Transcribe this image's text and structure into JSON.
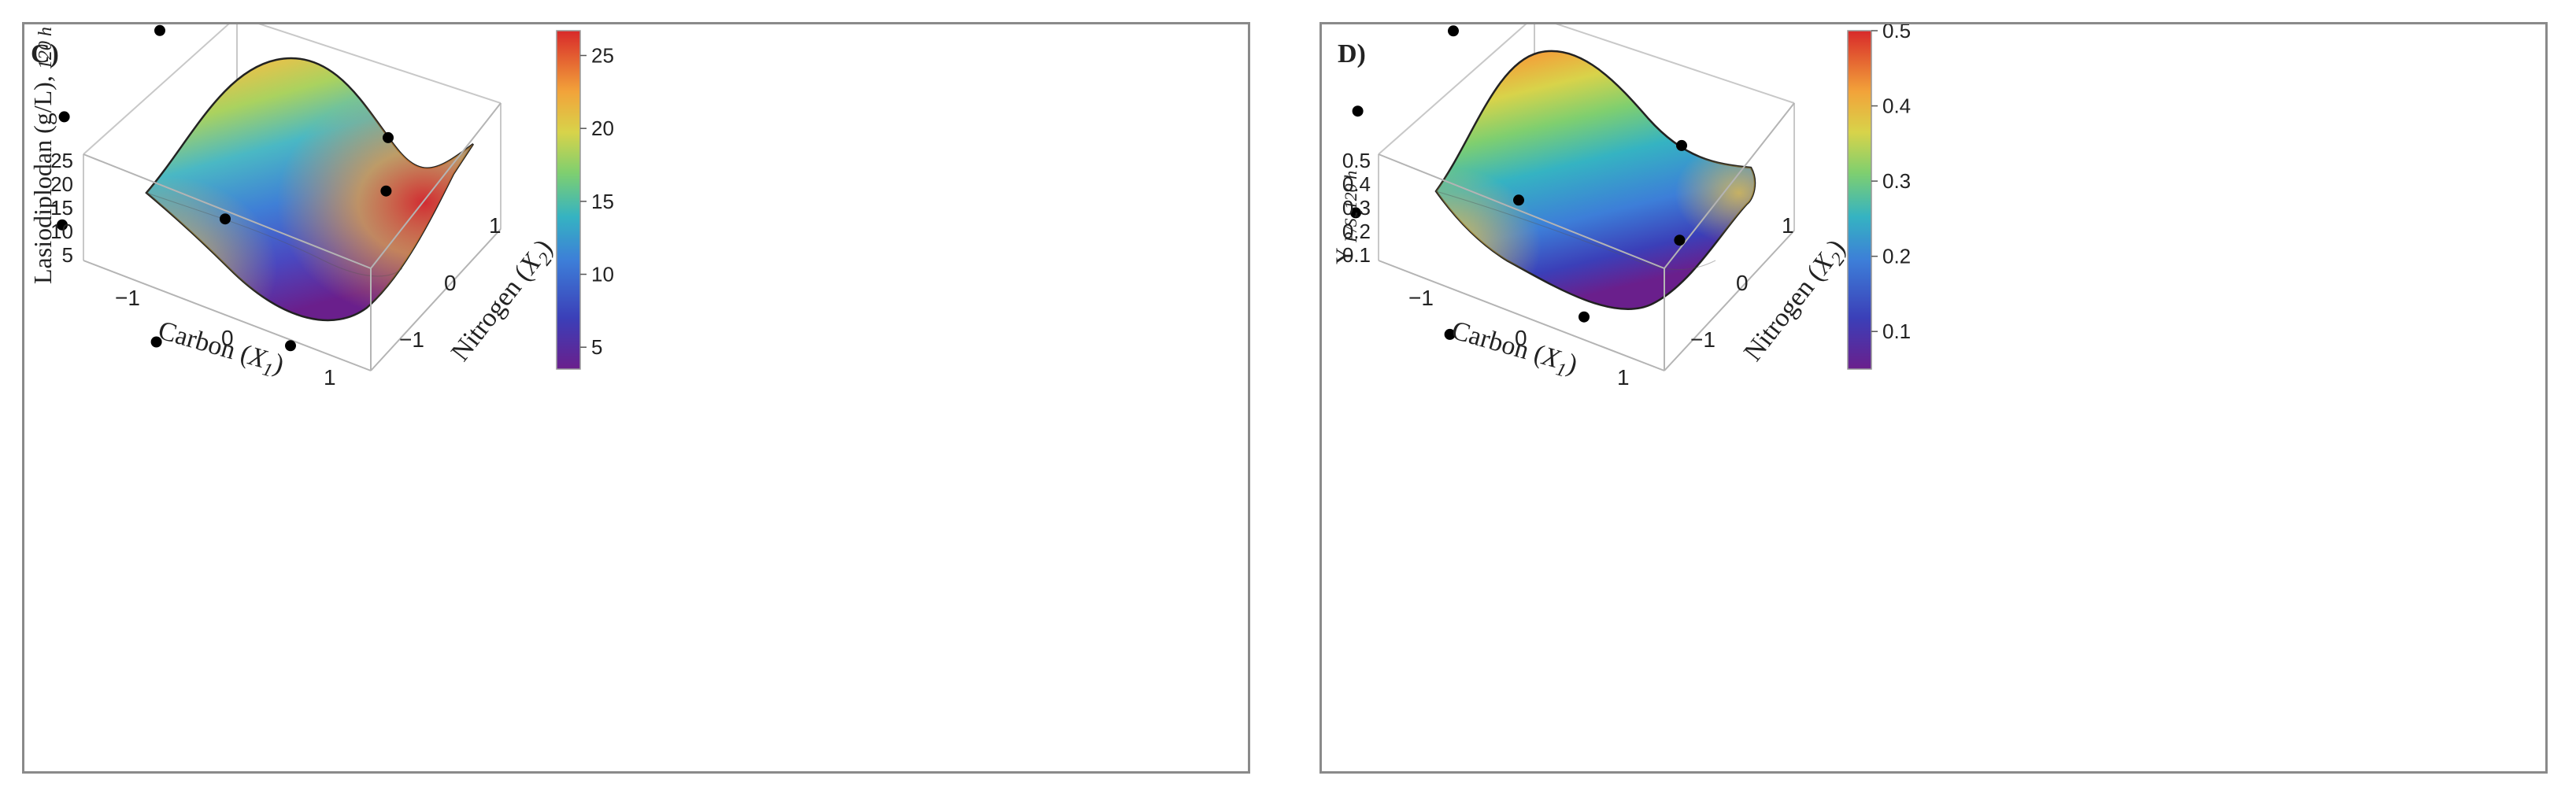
{
  "chart_data": [
    {
      "type": "surface3d",
      "panel_label": "C)",
      "zlabel_main": "Lasiodiplodan (g/L),",
      "zlabel_sub": "120 h",
      "xlabel_main": "Carbon (",
      "xlabel_var": "X",
      "xlabel_sub": "1",
      "xlabel_end": ")",
      "ylabel_main": "Nitrogen (",
      "ylabel_var": "X",
      "ylabel_sub": "2",
      "ylabel_end": ")",
      "x_ticks": [
        "−1",
        "0",
        "1"
      ],
      "y_ticks": [
        "−1",
        "0",
        "1"
      ],
      "z_ticks": [
        "25",
        "20",
        "15",
        "10",
        "5"
      ],
      "x_range": [
        -1.41,
        1.41
      ],
      "y_range": [
        -1.41,
        1.41
      ],
      "z_range": [
        3.5,
        26.5
      ],
      "colorbar_ticks": [
        "25",
        "20",
        "15",
        "10",
        "5"
      ],
      "colorbar_values": [
        25,
        20,
        15,
        10,
        5
      ],
      "colorbar_range": [
        3.5,
        26.7
      ],
      "points": [
        {
          "x": -1.41,
          "y": 0,
          "z": 15
        },
        {
          "x": -1,
          "y": -1,
          "z": 11
        },
        {
          "x": -1,
          "y": 1,
          "z": 21
        },
        {
          "x": 0,
          "y": -1.41,
          "z": 4
        },
        {
          "x": 0,
          "y": 0,
          "z": 9
        },
        {
          "x": 0,
          "y": 1.41,
          "z": 26
        },
        {
          "x": 1,
          "y": -1,
          "z": 6
        },
        {
          "x": 1,
          "y": 1,
          "z": 18
        },
        {
          "x": 1.41,
          "y": 0,
          "z": 22
        }
      ]
    },
    {
      "type": "surface3d",
      "panel_label": "D)",
      "zlabel_main": "Y",
      "zlabel_sub": "P/S, 120 h",
      "xlabel_main": "Carbon (",
      "xlabel_var": "X",
      "xlabel_sub": "1",
      "xlabel_end": ")",
      "ylabel_main": "Nitrogen (",
      "ylabel_var": "X",
      "ylabel_sub": "2",
      "ylabel_end": ")",
      "x_ticks": [
        "−1",
        "0",
        "1"
      ],
      "y_ticks": [
        "−1",
        "0",
        "1"
      ],
      "z_ticks": [
        "0.5",
        "0.4",
        "0.3",
        "0.2",
        "0.1"
      ],
      "x_range": [
        -1.41,
        1.41
      ],
      "y_range": [
        -1.41,
        1.41
      ],
      "z_range": [
        0.05,
        0.5
      ],
      "colorbar_ticks": [
        "0.5",
        "0.4",
        "0.3",
        "0.2",
        "0.1"
      ],
      "colorbar_values": [
        0.5,
        0.4,
        0.3,
        0.2,
        0.1
      ],
      "colorbar_range": [
        0.05,
        0.5
      ],
      "points": [
        {
          "x": -1.41,
          "y": 0,
          "z": 0.28
        },
        {
          "x": -1,
          "y": -1,
          "z": 0.22
        },
        {
          "x": -1,
          "y": 1,
          "z": 0.38
        },
        {
          "x": 0,
          "y": -1.41,
          "z": 0.07
        },
        {
          "x": 0,
          "y": 0,
          "z": 0.2
        },
        {
          "x": 0,
          "y": 1.41,
          "z": 0.48
        },
        {
          "x": 1,
          "y": -1,
          "z": 0.17
        },
        {
          "x": 1,
          "y": 1,
          "z": 0.3
        },
        {
          "x": 1.41,
          "y": 0,
          "z": 0.26
        }
      ]
    }
  ]
}
